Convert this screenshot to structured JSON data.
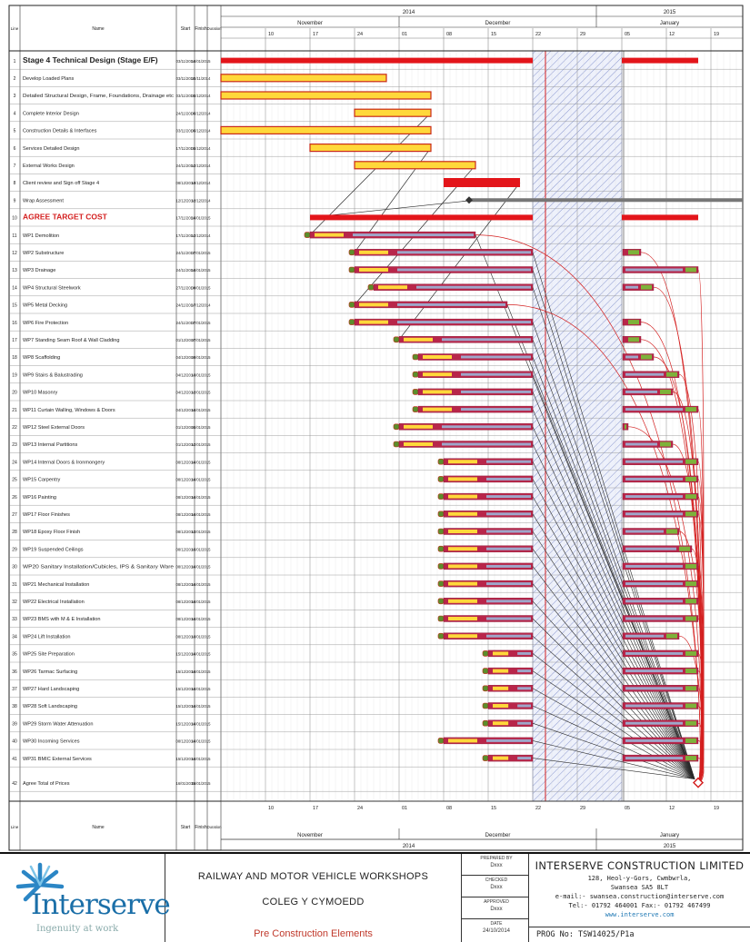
{
  "timeline": {
    "years": [
      "2014",
      "2015"
    ],
    "months": [
      "November",
      "December",
      "January"
    ],
    "week_days_top": [
      "10",
      "17",
      "24",
      "01",
      "08",
      "15",
      "22",
      "29",
      "05",
      "12",
      "19"
    ],
    "week_days_bottom": [
      "10",
      "17",
      "24",
      "01",
      "08",
      "15",
      "22",
      "29",
      "05",
      "12",
      "19"
    ]
  },
  "columns": {
    "id": "Line",
    "name": "Name",
    "start": "Start",
    "finish": "Finish",
    "duration": "Duration"
  },
  "tasks": [
    {
      "id": "1",
      "name": "Stage 4 Technical Design (Stage E/F)",
      "start": "03/11/2014",
      "finish": "16/01/2015",
      "type": "summary",
      "bold": true
    },
    {
      "id": "2",
      "name": "Develop Loaded Plans",
      "start": "03/11/2014",
      "finish": "28/11/2014",
      "type": "design"
    },
    {
      "id": "3",
      "name": "Detailed Structural Design, Frame, Foundations, Drainage etc",
      "start": "03/11/2014",
      "finish": "05/12/2014",
      "type": "design"
    },
    {
      "id": "4",
      "name": "Complete Interior Design",
      "start": "24/11/2014",
      "finish": "05/12/2014",
      "type": "design"
    },
    {
      "id": "5",
      "name": "Construction Details & Interfaces",
      "start": "03/11/2014",
      "finish": "05/12/2014",
      "type": "design"
    },
    {
      "id": "6",
      "name": "Services Detailed Design",
      "start": "17/11/2014",
      "finish": "05/12/2014",
      "type": "design"
    },
    {
      "id": "7",
      "name": "External Works Design",
      "start": "24/11/2014",
      "finish": "12/12/2014",
      "type": "design"
    },
    {
      "id": "8",
      "name": "Client review and Sign off Stage 4",
      "start": "08/12/2014",
      "finish": "19/12/2014",
      "type": "review"
    },
    {
      "id": "9",
      "name": "Wrap Assessment",
      "start": "12/12/2014",
      "finish": "12/12/2014",
      "type": "milestone"
    },
    {
      "id": "10",
      "name": "AGREE TARGET COST",
      "start": "17/11/2014",
      "finish": "16/01/2015",
      "type": "summary",
      "bold": true,
      "red": true
    },
    {
      "id": "11",
      "name": "WP1 Demolition",
      "start": "17/11/2014",
      "finish": "12/12/2014",
      "type": "wp"
    },
    {
      "id": "12",
      "name": "WP2 Substructure",
      "start": "24/11/2014",
      "finish": "07/01/2015",
      "type": "wp"
    },
    {
      "id": "13",
      "name": "WP3 Drainage",
      "start": "24/11/2014",
      "finish": "16/01/2015",
      "type": "wp"
    },
    {
      "id": "14",
      "name": "WP4 Structural Steelwork",
      "start": "27/11/2014",
      "finish": "09/01/2015",
      "type": "wp"
    },
    {
      "id": "15",
      "name": "WP5 Metal Decking",
      "start": "24/11/2014",
      "finish": "17/12/2014",
      "type": "wp"
    },
    {
      "id": "16",
      "name": "WP6 Fire Protection",
      "start": "24/11/2014",
      "finish": "07/01/2015",
      "type": "wp"
    },
    {
      "id": "17",
      "name": "WP7 Standing Seam Roof & Wall Cladding",
      "start": "01/12/2014",
      "finish": "07/01/2015",
      "type": "wp"
    },
    {
      "id": "18",
      "name": "WP8 Scaffolding",
      "start": "04/12/2014",
      "finish": "09/01/2015",
      "type": "wp"
    },
    {
      "id": "19",
      "name": "WP9 Stairs & Balustrading",
      "start": "04/12/2014",
      "finish": "13/01/2015",
      "type": "wp"
    },
    {
      "id": "20",
      "name": "WP10 Masonry",
      "start": "04/12/2014",
      "finish": "12/01/2015",
      "type": "wp"
    },
    {
      "id": "21",
      "name": "WP11 Curtain Walling, Windows & Doors",
      "start": "04/12/2014",
      "finish": "16/01/2015",
      "type": "wp"
    },
    {
      "id": "22",
      "name": "WP12 Steel External Doors",
      "start": "01/12/2014",
      "finish": "05/01/2015",
      "type": "wp"
    },
    {
      "id": "23",
      "name": "WP13 Internal Partitions",
      "start": "01/12/2014",
      "finish": "12/01/2015",
      "type": "wp"
    },
    {
      "id": "24",
      "name": "WP14 Internal Doors & Ironmongery",
      "start": "08/12/2014",
      "finish": "16/01/2015",
      "type": "wp"
    },
    {
      "id": "25",
      "name": "WP15 Carpentry",
      "start": "08/12/2014",
      "finish": "16/01/2015",
      "type": "wp"
    },
    {
      "id": "26",
      "name": "WP16 Painting",
      "start": "08/12/2014",
      "finish": "16/01/2015",
      "type": "wp"
    },
    {
      "id": "27",
      "name": "WP17 Floor Finishes",
      "start": "08/12/2014",
      "finish": "16/01/2015",
      "type": "wp"
    },
    {
      "id": "28",
      "name": "WP18 Epoxy Floor Finish",
      "start": "08/12/2014",
      "finish": "13/01/2015",
      "type": "wp"
    },
    {
      "id": "29",
      "name": "WP19 Suspended Ceilings",
      "start": "08/12/2014",
      "finish": "15/01/2015",
      "type": "wp"
    },
    {
      "id": "30",
      "name": "WP20 Sanitary Installation/Cubicles, IPS & Sanitary Ware",
      "start": "08/12/2014",
      "finish": "16/01/2015",
      "type": "wp"
    },
    {
      "id": "31",
      "name": "WP21 Mechanical Installation",
      "start": "08/12/2014",
      "finish": "16/01/2015",
      "type": "wp"
    },
    {
      "id": "32",
      "name": "WP22 Electrical Installation",
      "start": "08/12/2014",
      "finish": "16/01/2015",
      "type": "wp"
    },
    {
      "id": "33",
      "name": "WP23 BMS with M & E Installation",
      "start": "08/12/2014",
      "finish": "16/01/2015",
      "type": "wp"
    },
    {
      "id": "34",
      "name": "WP24 Lift Installation",
      "start": "08/12/2014",
      "finish": "13/01/2015",
      "type": "wp"
    },
    {
      "id": "35",
      "name": "WP25 Site Preparation",
      "start": "15/12/2014",
      "finish": "16/01/2015",
      "type": "wp"
    },
    {
      "id": "36",
      "name": "WP26 Tarmac Surfacing",
      "start": "15/12/2014",
      "finish": "16/01/2015",
      "type": "wp"
    },
    {
      "id": "37",
      "name": "WP27 Hard Landscaping",
      "start": "15/12/2014",
      "finish": "16/01/2015",
      "type": "wp"
    },
    {
      "id": "38",
      "name": "WP28 Soft Landscaping",
      "start": "15/12/2014",
      "finish": "16/01/2015",
      "type": "wp"
    },
    {
      "id": "39",
      "name": "WP29 Storm Water Attenuation",
      "start": "15/12/2014",
      "finish": "16/01/2015",
      "type": "wp"
    },
    {
      "id": "40",
      "name": "WP30 Incoming Services",
      "start": "08/12/2014",
      "finish": "16/01/2015",
      "type": "wp"
    },
    {
      "id": "41",
      "name": "WP31 BMIC External Services",
      "start": "15/12/2014",
      "finish": "16/01/2015",
      "type": "wp"
    },
    {
      "id": "42",
      "name": "Agree Total of Prices",
      "start": "16/01/2015",
      "finish": "16/01/2015",
      "type": "milestone-end"
    }
  ],
  "title_block": {
    "logo_word": "Interserve",
    "logo_tagline": "Ingenuity at work",
    "project_line1": "RAILWAY AND MOTOR VEHICLE WORKSHOPS",
    "project_line2": "COLEG Y CYMOEDD",
    "drawing_title": "Pre Construction Elements",
    "mid_rows": [
      {
        "label": "PREPARED BY",
        "value": "Dxxx"
      },
      {
        "label": "CHECKED",
        "value": "Dxxx"
      },
      {
        "label": "APPROVED",
        "value": "Dxxx"
      },
      {
        "label": "DATE",
        "value": "24/10/2014"
      }
    ],
    "company_name": "INTERSERVE CONSTRUCTION LIMITED",
    "address_1": "128, Heol-y-Gors, Cwmbwrla,",
    "address_2": "Swansea SA5 8LT",
    "email": "e-mail:- swansea.construction@interserve.com",
    "phone": "Tel:- 01792 464001   Fax:- 01792 467499",
    "website": "www.interserve.com",
    "prog_no": "PROG No: TSW14025/P1a"
  },
  "colors": {
    "summary_red": "#e3151a",
    "design_fill": "#ffd83a",
    "design_border": "#c92a1a",
    "crimson": "#b8264a",
    "float_grey": "#9ea6c9",
    "green_end": "#7db23a",
    "holiday_hatch": "#c9d3ee",
    "link": "#2a2a2a",
    "link_red": "#d42020"
  }
}
